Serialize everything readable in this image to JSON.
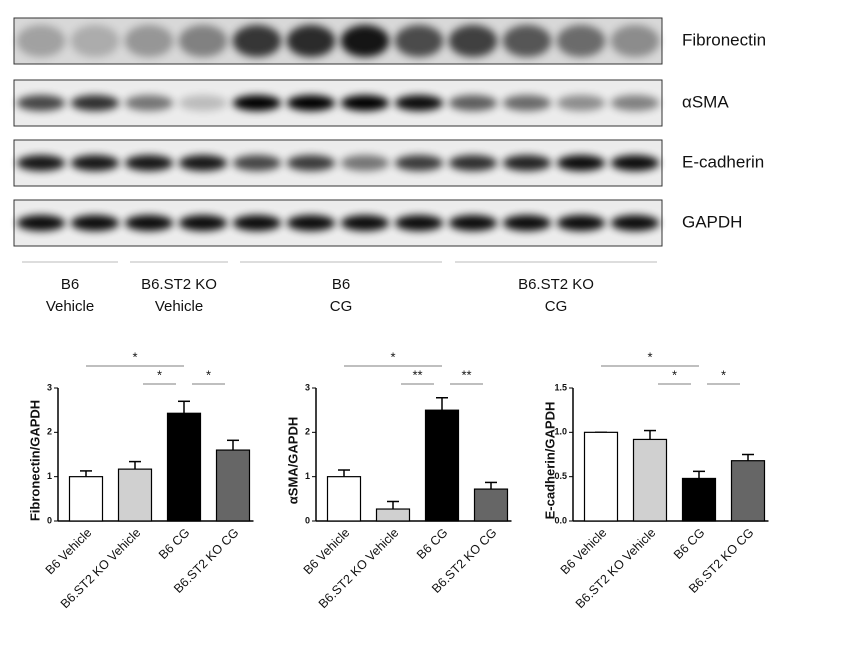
{
  "blot": {
    "rows": [
      "Fibronectin",
      "αSMA",
      "E-cadherin",
      "GAPDH"
    ],
    "groups": [
      [
        "B6",
        "Vehicle"
      ],
      [
        "B6.ST2 KO",
        "Vehicle"
      ],
      [
        "B6",
        "CG"
      ],
      [
        "B6.ST2 KO",
        "CG"
      ]
    ]
  },
  "chart_data": [
    {
      "type": "bar",
      "ylabel": "Fibronectin/GAPDH",
      "categories": [
        "B6 Vehicle",
        "B6.ST2 KO Vehicle",
        "B6 CG",
        "B6.ST2 KO CG"
      ],
      "values": [
        1.0,
        1.17,
        2.43,
        1.6
      ],
      "errors": [
        0.13,
        0.17,
        0.27,
        0.22
      ],
      "colors": [
        "#ffffff",
        "#d0d0d0",
        "#000000",
        "#666666"
      ],
      "ylim": [
        0,
        3
      ],
      "yticks": [
        0,
        1,
        2,
        3
      ],
      "significance": [
        {
          "label": "*",
          "between": [
            "B6 Vehicle",
            "B6 CG"
          ]
        },
        {
          "label": "*",
          "between": [
            "B6.ST2 KO Vehicle",
            "B6 CG"
          ]
        },
        {
          "label": "*",
          "between": [
            "B6 CG",
            "B6.ST2 KO CG"
          ]
        }
      ]
    },
    {
      "type": "bar",
      "ylabel": "αSMA/GAPDH",
      "categories": [
        "B6 Vehicle",
        "B6.ST2 KO Vehicle",
        "B6 CG",
        "B6.ST2 KO CG"
      ],
      "values": [
        1.0,
        0.27,
        2.5,
        0.72
      ],
      "errors": [
        0.15,
        0.17,
        0.28,
        0.15
      ],
      "colors": [
        "#ffffff",
        "#d0d0d0",
        "#000000",
        "#666666"
      ],
      "ylim": [
        0,
        3
      ],
      "yticks": [
        0,
        1,
        2,
        3
      ],
      "significance": [
        {
          "label": "*",
          "between": [
            "B6 Vehicle",
            "B6 CG"
          ]
        },
        {
          "label": "**",
          "between": [
            "B6.ST2 KO Vehicle",
            "B6 CG"
          ]
        },
        {
          "label": "**",
          "between": [
            "B6 CG",
            "B6.ST2 KO CG"
          ]
        }
      ]
    },
    {
      "type": "bar",
      "ylabel": "E-cadherin/GAPDH",
      "categories": [
        "B6 Vehicle",
        "B6.ST2 KO Vehicle",
        "B6 CG",
        "B6.ST2 KO CG"
      ],
      "values": [
        1.0,
        0.92,
        0.48,
        0.68
      ],
      "errors": [
        0,
        0.1,
        0.08,
        0.07
      ],
      "colors": [
        "#ffffff",
        "#d0d0d0",
        "#000000",
        "#666666"
      ],
      "ylim": [
        0,
        1.5
      ],
      "yticks": [
        {
          "value": 0,
          "label": "0.0"
        },
        0.5,
        {
          "value": 1,
          "label": "1.0"
        },
        1.5
      ],
      "significance": [
        {
          "label": "*",
          "between": [
            "B6 Vehicle",
            "B6 CG"
          ]
        },
        {
          "label": "*",
          "between": [
            "B6.ST2 KO Vehicle",
            "B6 CG"
          ]
        },
        {
          "label": "*",
          "between": [
            "B6 CG",
            "B6.ST2 KO CG"
          ]
        }
      ]
    }
  ]
}
